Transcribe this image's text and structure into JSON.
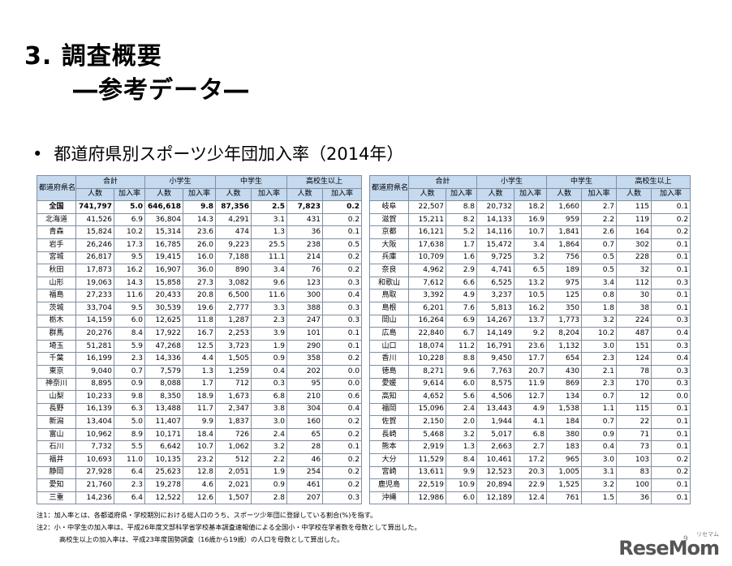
{
  "header": {
    "title": "3.  調査概要",
    "subtitle": "―参考データ―",
    "section_bullet": "•",
    "section_title": "都道府県別スポーツ少年団加入率（2014年）"
  },
  "table_headers": {
    "pref": "都道府県名",
    "total": "合計",
    "elementary": "小学生",
    "junior_high": "中学生",
    "high_school": "高校生以上",
    "count": "人数",
    "rate": "加入率"
  },
  "left_rows": [
    [
      "全国",
      "741,797",
      "5.0",
      "646,618",
      "9.8",
      "87,356",
      "2.5",
      "7,823",
      "0.2"
    ],
    [
      "北海道",
      "41,526",
      "6.9",
      "36,804",
      "14.3",
      "4,291",
      "3.1",
      "431",
      "0.2"
    ],
    [
      "青森",
      "15,824",
      "10.2",
      "15,314",
      "23.6",
      "474",
      "1.3",
      "36",
      "0.1"
    ],
    [
      "岩手",
      "26,246",
      "17.3",
      "16,785",
      "26.0",
      "9,223",
      "25.5",
      "238",
      "0.5"
    ],
    [
      "宮城",
      "26,817",
      "9.5",
      "19,415",
      "16.0",
      "7,188",
      "11.1",
      "214",
      "0.2"
    ],
    [
      "秋田",
      "17,873",
      "16.2",
      "16,907",
      "36.0",
      "890",
      "3.4",
      "76",
      "0.2"
    ],
    [
      "山形",
      "19,063",
      "14.3",
      "15,858",
      "27.3",
      "3,082",
      "9.6",
      "123",
      "0.3"
    ],
    [
      "福島",
      "27,233",
      "11.6",
      "20,433",
      "20.8",
      "6,500",
      "11.6",
      "300",
      "0.4"
    ],
    [
      "茨城",
      "33,704",
      "9.5",
      "30,539",
      "19.6",
      "2,777",
      "3.3",
      "388",
      "0.3"
    ],
    [
      "栃木",
      "14,159",
      "6.0",
      "12,625",
      "11.8",
      "1,287",
      "2.3",
      "247",
      "0.3"
    ],
    [
      "群馬",
      "20,276",
      "8.4",
      "17,922",
      "16.7",
      "2,253",
      "3.9",
      "101",
      "0.1"
    ],
    [
      "埼玉",
      "51,281",
      "5.9",
      "47,268",
      "12.5",
      "3,723",
      "1.9",
      "290",
      "0.1"
    ],
    [
      "千葉",
      "16,199",
      "2.3",
      "14,336",
      "4.4",
      "1,505",
      "0.9",
      "358",
      "0.2"
    ],
    [
      "東京",
      "9,040",
      "0.7",
      "7,579",
      "1.3",
      "1,259",
      "0.4",
      "202",
      "0.0"
    ],
    [
      "神奈川",
      "8,895",
      "0.9",
      "8,088",
      "1.7",
      "712",
      "0.3",
      "95",
      "0.0"
    ],
    [
      "山梨",
      "10,233",
      "9.8",
      "8,350",
      "18.9",
      "1,673",
      "6.8",
      "210",
      "0.6"
    ],
    [
      "長野",
      "16,139",
      "6.3",
      "13,488",
      "11.7",
      "2,347",
      "3.8",
      "304",
      "0.4"
    ],
    [
      "新潟",
      "13,404",
      "5.0",
      "11,407",
      "9.9",
      "1,837",
      "3.0",
      "160",
      "0.2"
    ],
    [
      "富山",
      "10,962",
      "8.9",
      "10,171",
      "18.4",
      "726",
      "2.4",
      "65",
      "0.2"
    ],
    [
      "石川",
      "7,732",
      "5.5",
      "6,642",
      "10.7",
      "1,062",
      "3.2",
      "28",
      "0.1"
    ],
    [
      "福井",
      "10,693",
      "11.0",
      "10,135",
      "23.2",
      "512",
      "2.2",
      "46",
      "0.2"
    ],
    [
      "静岡",
      "27,928",
      "6.4",
      "25,623",
      "12.8",
      "2,051",
      "1.9",
      "254",
      "0.2"
    ],
    [
      "愛知",
      "21,760",
      "2.3",
      "19,278",
      "4.6",
      "2,021",
      "0.9",
      "461",
      "0.2"
    ],
    [
      "三重",
      "14,236",
      "6.4",
      "12,522",
      "12.6",
      "1,507",
      "2.8",
      "207",
      "0.3"
    ]
  ],
  "right_rows": [
    [
      "岐阜",
      "22,507",
      "8.8",
      "20,732",
      "18.2",
      "1,660",
      "2.7",
      "115",
      "0.1"
    ],
    [
      "滋賀",
      "15,211",
      "8.2",
      "14,133",
      "16.9",
      "959",
      "2.2",
      "119",
      "0.2"
    ],
    [
      "京都",
      "16,121",
      "5.2",
      "14,116",
      "10.7",
      "1,841",
      "2.6",
      "164",
      "0.2"
    ],
    [
      "大阪",
      "17,638",
      "1.7",
      "15,472",
      "3.4",
      "1,864",
      "0.7",
      "302",
      "0.1"
    ],
    [
      "兵庫",
      "10,709",
      "1.6",
      "9,725",
      "3.2",
      "756",
      "0.5",
      "228",
      "0.1"
    ],
    [
      "奈良",
      "4,962",
      "2.9",
      "4,741",
      "6.5",
      "189",
      "0.5",
      "32",
      "0.1"
    ],
    [
      "和歌山",
      "7,612",
      "6.6",
      "6,525",
      "13.2",
      "975",
      "3.4",
      "112",
      "0.3"
    ],
    [
      "鳥取",
      "3,392",
      "4.9",
      "3,237",
      "10.5",
      "125",
      "0.8",
      "30",
      "0.1"
    ],
    [
      "島根",
      "6,201",
      "7.6",
      "5,813",
      "16.2",
      "350",
      "1.8",
      "38",
      "0.1"
    ],
    [
      "岡山",
      "16,264",
      "6.9",
      "14,267",
      "13.7",
      "1,773",
      "3.2",
      "224",
      "0.3"
    ],
    [
      "広島",
      "22,840",
      "6.7",
      "14,149",
      "9.2",
      "8,204",
      "10.2",
      "487",
      "0.4"
    ],
    [
      "山口",
      "18,074",
      "11.2",
      "16,791",
      "23.6",
      "1,132",
      "3.0",
      "151",
      "0.3"
    ],
    [
      "香川",
      "10,228",
      "8.8",
      "9,450",
      "17.7",
      "654",
      "2.3",
      "124",
      "0.4"
    ],
    [
      "徳島",
      "8,271",
      "9.6",
      "7,763",
      "20.7",
      "430",
      "2.1",
      "78",
      "0.3"
    ],
    [
      "愛媛",
      "9,614",
      "6.0",
      "8,575",
      "11.9",
      "869",
      "2.3",
      "170",
      "0.3"
    ],
    [
      "高知",
      "4,652",
      "5.6",
      "4,506",
      "12.7",
      "134",
      "0.7",
      "12",
      "0.0"
    ],
    [
      "福岡",
      "15,096",
      "2.4",
      "13,443",
      "4.9",
      "1,538",
      "1.1",
      "115",
      "0.1"
    ],
    [
      "佐賀",
      "2,150",
      "2.0",
      "1,944",
      "4.1",
      "184",
      "0.7",
      "22",
      "0.1"
    ],
    [
      "長崎",
      "5,468",
      "3.2",
      "5,017",
      "6.8",
      "380",
      "0.9",
      "71",
      "0.1"
    ],
    [
      "熊本",
      "2,919",
      "1.3",
      "2,663",
      "2.7",
      "183",
      "0.4",
      "73",
      "0.1"
    ],
    [
      "大分",
      "11,529",
      "8.4",
      "10,461",
      "17.2",
      "965",
      "3.0",
      "103",
      "0.2"
    ],
    [
      "宮崎",
      "13,611",
      "9.9",
      "12,523",
      "20.3",
      "1,005",
      "3.1",
      "83",
      "0.2"
    ],
    [
      "鹿児島",
      "22,519",
      "10.9",
      "20,894",
      "22.9",
      "1,525",
      "3.2",
      "100",
      "0.1"
    ],
    [
      "沖縄",
      "12,986",
      "6.0",
      "12,189",
      "12.4",
      "761",
      "1.5",
      "36",
      "0.1"
    ]
  ],
  "notes": {
    "note1": "注1：加入率とは、各都道府県・学校期別における総人口のうち、スポーツ少年団に登録している割合(%)を指す。",
    "note2": "注2：小・中学生の加入率は、平成26年度文部科学省学校基本調査速報値による全国小・中学校在学者数を母数として算出した。",
    "note3": "高校生以上の加入率は、平成23年度国勢調査（16歳から19歳）の人口を母数として算出した。"
  },
  "logo": {
    "main": "ReseMom",
    "sub": "リセマム"
  },
  "page_number": "9"
}
